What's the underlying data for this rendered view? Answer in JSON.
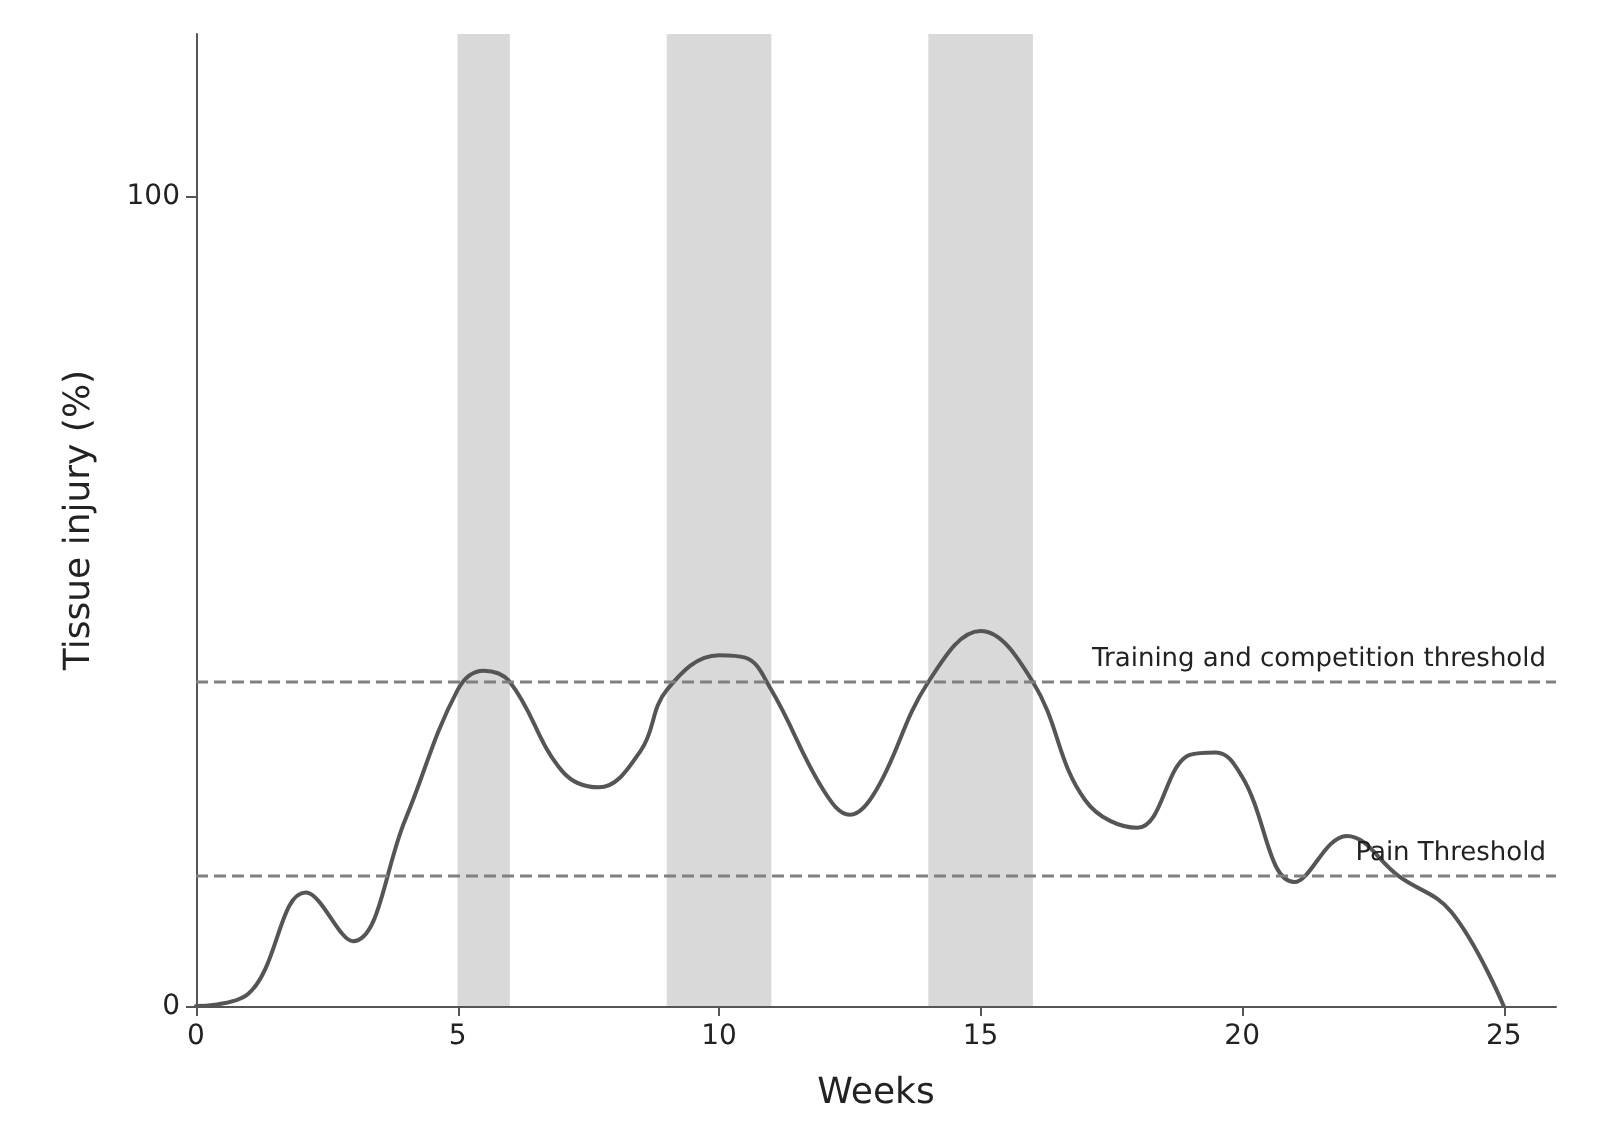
{
  "chart_data": {
    "type": "line",
    "xlabel": "Weeks",
    "ylabel": "Tissue injury (%)",
    "x": [
      0,
      1,
      2.1,
      3,
      4,
      5,
      5.5,
      6,
      7,
      7.7,
      8.5,
      9,
      10,
      10.5,
      11,
      12,
      12.5,
      13,
      14,
      15,
      16,
      17,
      18,
      19,
      19.5,
      20,
      21,
      22,
      23,
      24,
      25
    ],
    "values": [
      0,
      1.5,
      14,
      8,
      23,
      39,
      41.4,
      40,
      29,
      27,
      31.5,
      39,
      43.3,
      43,
      39,
      26.6,
      23.6,
      26.6,
      40,
      46.3,
      40,
      25.4,
      22,
      31,
      31.3,
      28.3,
      15.3,
      21,
      16,
      11.6,
      0
    ],
    "color": "#555555",
    "marker": "none",
    "line_style": "solid",
    "xlim": [
      0,
      26
    ],
    "xticks": [
      0,
      5,
      10,
      15,
      20,
      25
    ],
    "ylim": [
      0,
      120
    ],
    "yticks": [
      0,
      100
    ],
    "ref_lines": [
      {
        "axis": "y",
        "value": 40,
        "label": "Training and competition threshold",
        "color": "#808080",
        "line_style": "dashed"
      },
      {
        "axis": "y",
        "value": 16,
        "label": "Pain Threshold",
        "color": "#808080",
        "line_style": "dashed"
      }
    ],
    "bands": [
      {
        "axis": "x",
        "from": 5,
        "to": 6,
        "color": "#d9d9d9"
      },
      {
        "axis": "x",
        "from": 9,
        "to": 11,
        "color": "#d9d9d9"
      },
      {
        "axis": "x",
        "from": 14,
        "to": 16,
        "color": "#d9d9d9"
      }
    ]
  }
}
